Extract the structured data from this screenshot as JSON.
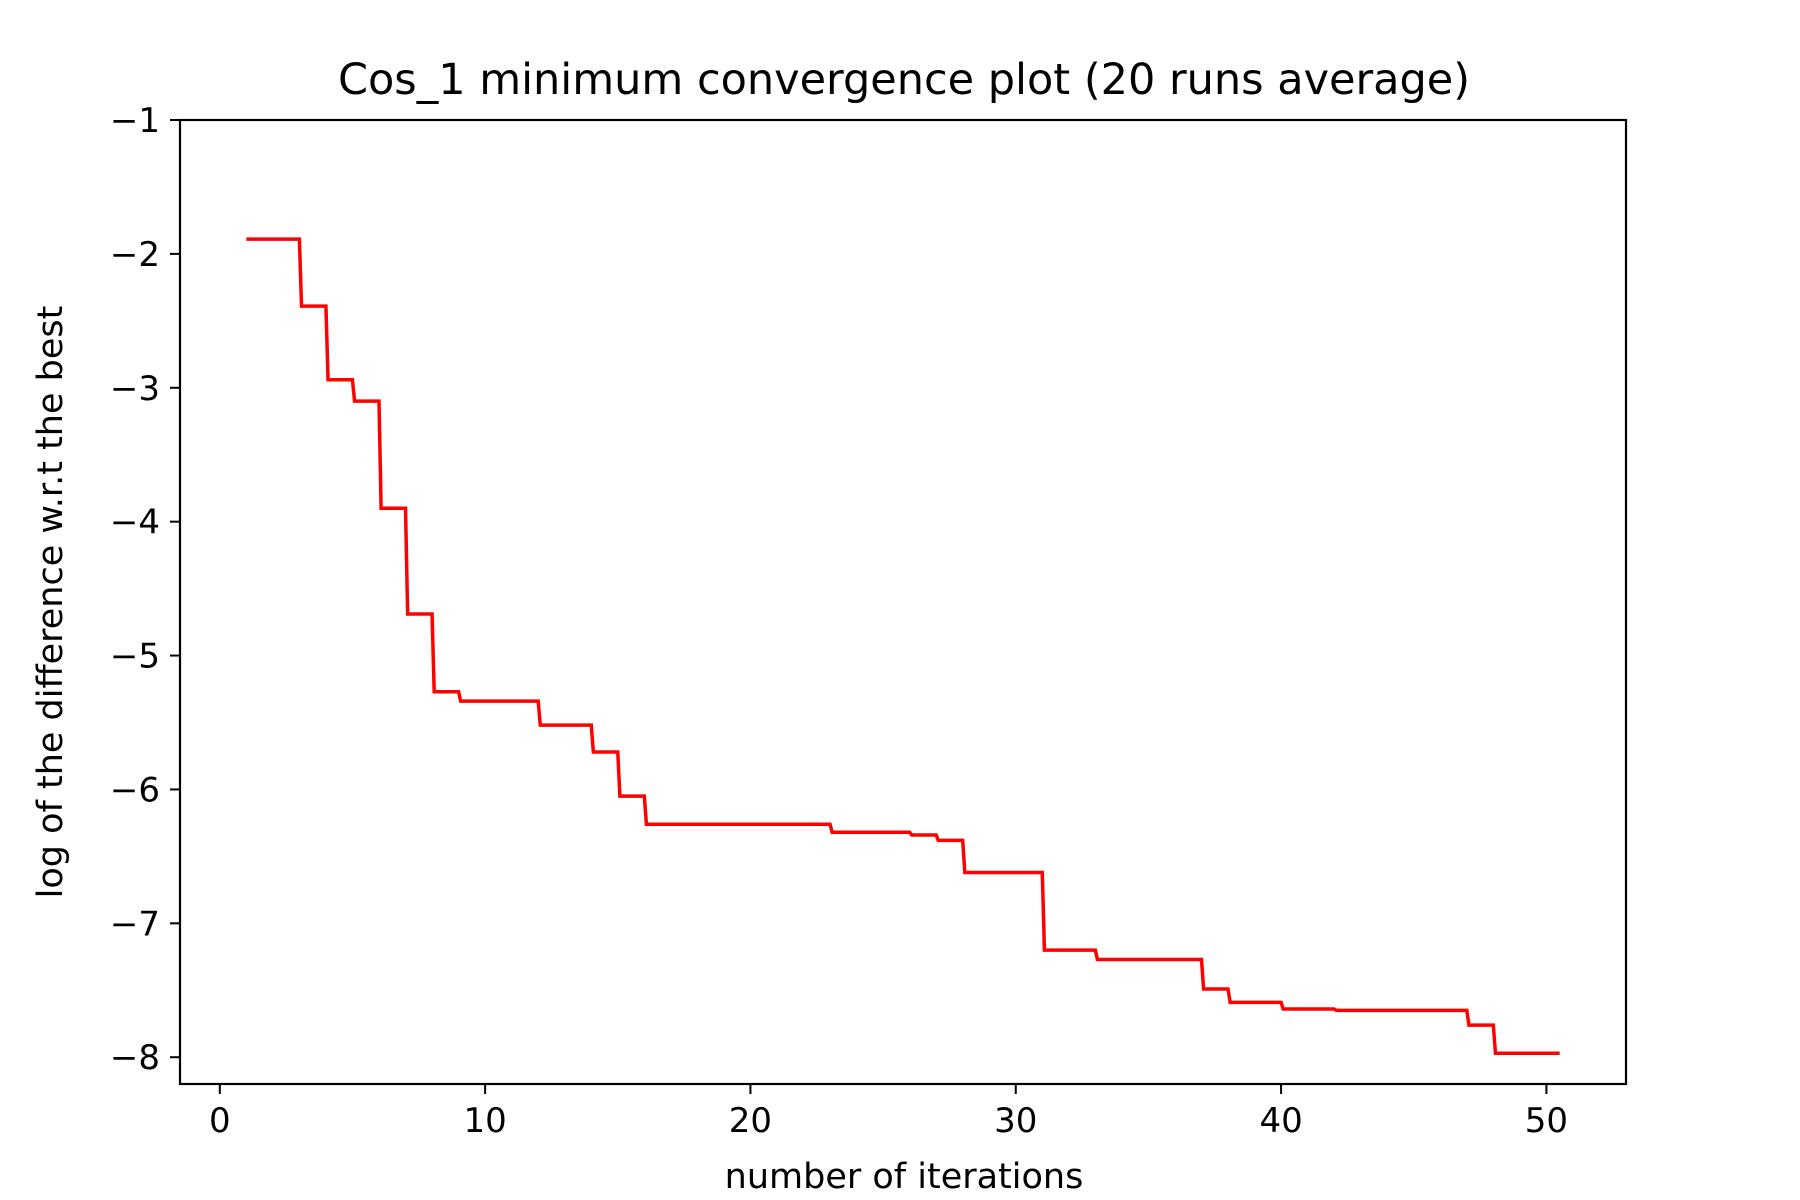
{
  "chart_data": {
    "type": "line",
    "title": "Cos_1 minimum convergence plot (20 runs average)",
    "xlabel": "number of iterations",
    "ylabel": "log of the difference w.r.t the best",
    "xlim": [
      -1.5,
      53
    ],
    "ylim": [
      -8.2,
      -1
    ],
    "x_ticks": [
      0,
      10,
      20,
      30,
      40,
      50
    ],
    "y_ticks": [
      -1,
      -2,
      -3,
      -4,
      -5,
      -6,
      -7,
      -8
    ],
    "x_tick_labels": [
      "0",
      "10",
      "20",
      "30",
      "40",
      "50"
    ],
    "y_tick_labels": [
      "−1",
      "−2",
      "−3",
      "−4",
      "−5",
      "−6",
      "−7",
      "−8"
    ],
    "grid": false,
    "legend": "none",
    "step": "post",
    "series": [
      {
        "color": "#ff0000",
        "x": [
          1,
          3,
          4,
          5,
          6,
          7,
          8,
          9,
          12,
          14,
          15,
          16,
          23,
          26,
          27,
          28,
          31,
          33,
          37,
          38,
          40,
          42,
          47,
          48,
          50.5
        ],
        "y": [
          -1.89,
          -2.39,
          -2.94,
          -3.1,
          -3.9,
          -4.69,
          -5.27,
          -5.34,
          -5.52,
          -5.72,
          -6.05,
          -6.26,
          -6.32,
          -6.34,
          -6.38,
          -6.62,
          -7.2,
          -7.27,
          -7.49,
          -7.59,
          -7.64,
          -7.65,
          -7.76,
          -7.97,
          -7.97
        ]
      }
    ]
  }
}
